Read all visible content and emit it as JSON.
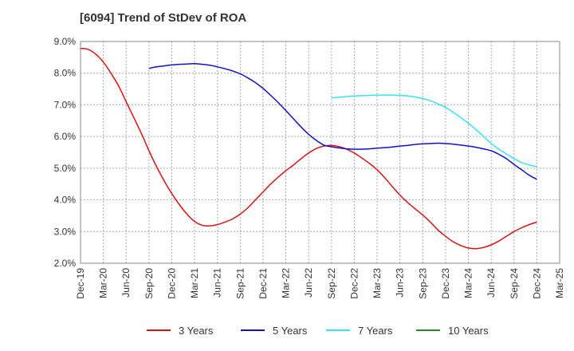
{
  "chart_data": {
    "type": "line",
    "title": "[6094]  Trend of StDev of ROA",
    "xlabel": "",
    "ylabel": "",
    "ylim": [
      2.0,
      9.0
    ],
    "y_ticks": [
      "2.0%",
      "3.0%",
      "4.0%",
      "5.0%",
      "6.0%",
      "7.0%",
      "8.0%",
      "9.0%"
    ],
    "x_ticks": [
      "Dec-19",
      "Mar-20",
      "Jun-20",
      "Sep-20",
      "Dec-20",
      "Mar-21",
      "Jun-21",
      "Sep-21",
      "Dec-21",
      "Mar-22",
      "Jun-22",
      "Sep-22",
      "Dec-22",
      "Mar-23",
      "Jun-23",
      "Sep-23",
      "Dec-23",
      "Mar-24",
      "Jun-24",
      "Sep-24",
      "Dec-24",
      "Mar-25"
    ],
    "grid": true,
    "legend_position": "bottom",
    "series": [
      {
        "name": "3 Years",
        "color": "#dd1111",
        "points": [
          [
            "Dec-19",
            8.78
          ],
          [
            "Jan-20",
            8.75
          ],
          [
            "Feb-20",
            8.6
          ],
          [
            "Mar-20",
            8.35
          ],
          [
            "Apr-20",
            8.0
          ],
          [
            "May-20",
            7.6
          ],
          [
            "Jun-20",
            7.1
          ],
          [
            "Jul-20",
            6.6
          ],
          [
            "Aug-20",
            6.1
          ],
          [
            "Sep-20",
            5.55
          ],
          [
            "Oct-20",
            5.05
          ],
          [
            "Nov-20",
            4.6
          ],
          [
            "Dec-20",
            4.2
          ],
          [
            "Jan-21",
            3.85
          ],
          [
            "Feb-21",
            3.55
          ],
          [
            "Mar-21",
            3.32
          ],
          [
            "Apr-21",
            3.2
          ],
          [
            "May-21",
            3.18
          ],
          [
            "Jun-21",
            3.22
          ],
          [
            "Jul-21",
            3.3
          ],
          [
            "Aug-21",
            3.4
          ],
          [
            "Sep-21",
            3.55
          ],
          [
            "Oct-21",
            3.75
          ],
          [
            "Nov-21",
            4.0
          ],
          [
            "Dec-21",
            4.25
          ],
          [
            "Jan-22",
            4.5
          ],
          [
            "Feb-22",
            4.72
          ],
          [
            "Mar-22",
            4.92
          ],
          [
            "Apr-22",
            5.1
          ],
          [
            "May-22",
            5.3
          ],
          [
            "Jun-22",
            5.48
          ],
          [
            "Jul-22",
            5.62
          ],
          [
            "Aug-22",
            5.7
          ],
          [
            "Sep-22",
            5.72
          ],
          [
            "Oct-22",
            5.68
          ],
          [
            "Nov-22",
            5.6
          ],
          [
            "Dec-22",
            5.48
          ],
          [
            "Jan-23",
            5.32
          ],
          [
            "Feb-23",
            5.15
          ],
          [
            "Mar-23",
            4.95
          ],
          [
            "Apr-23",
            4.7
          ],
          [
            "May-23",
            4.42
          ],
          [
            "Jun-23",
            4.15
          ],
          [
            "Jul-23",
            3.92
          ],
          [
            "Aug-23",
            3.72
          ],
          [
            "Sep-23",
            3.52
          ],
          [
            "Oct-23",
            3.3
          ],
          [
            "Nov-23",
            3.05
          ],
          [
            "Dec-23",
            2.85
          ],
          [
            "Jan-24",
            2.68
          ],
          [
            "Feb-24",
            2.56
          ],
          [
            "Mar-24",
            2.48
          ],
          [
            "Apr-24",
            2.46
          ],
          [
            "May-24",
            2.5
          ],
          [
            "Jun-24",
            2.58
          ],
          [
            "Jul-24",
            2.7
          ],
          [
            "Aug-24",
            2.85
          ],
          [
            "Sep-24",
            3.0
          ],
          [
            "Oct-24",
            3.12
          ],
          [
            "Nov-24",
            3.22
          ],
          [
            "Dec-24",
            3.3
          ]
        ]
      },
      {
        "name": "5 Years",
        "color": "#1111cc",
        "points": [
          [
            "Sep-20",
            8.15
          ],
          [
            "Oct-20",
            8.2
          ],
          [
            "Nov-20",
            8.23
          ],
          [
            "Dec-20",
            8.26
          ],
          [
            "Jan-21",
            8.28
          ],
          [
            "Feb-21",
            8.29
          ],
          [
            "Mar-21",
            8.3
          ],
          [
            "Apr-21",
            8.28
          ],
          [
            "May-21",
            8.25
          ],
          [
            "Jun-21",
            8.2
          ],
          [
            "Jul-21",
            8.14
          ],
          [
            "Aug-21",
            8.07
          ],
          [
            "Sep-21",
            7.98
          ],
          [
            "Oct-21",
            7.85
          ],
          [
            "Nov-21",
            7.7
          ],
          [
            "Dec-21",
            7.52
          ],
          [
            "Jan-22",
            7.3
          ],
          [
            "Feb-22",
            7.07
          ],
          [
            "Mar-22",
            6.82
          ],
          [
            "Apr-22",
            6.56
          ],
          [
            "May-22",
            6.3
          ],
          [
            "Jun-22",
            6.07
          ],
          [
            "Jul-22",
            5.88
          ],
          [
            "Aug-22",
            5.73
          ],
          [
            "Sep-22",
            5.68
          ],
          [
            "Oct-22",
            5.64
          ],
          [
            "Nov-22",
            5.61
          ],
          [
            "Dec-22",
            5.6
          ],
          [
            "Jan-23",
            5.6
          ],
          [
            "Feb-23",
            5.61
          ],
          [
            "Mar-23",
            5.63
          ],
          [
            "Apr-23",
            5.65
          ],
          [
            "May-23",
            5.67
          ],
          [
            "Jun-23",
            5.7
          ],
          [
            "Jul-23",
            5.72
          ],
          [
            "Aug-23",
            5.75
          ],
          [
            "Sep-23",
            5.77
          ],
          [
            "Oct-23",
            5.78
          ],
          [
            "Nov-23",
            5.79
          ],
          [
            "Dec-23",
            5.78
          ],
          [
            "Jan-24",
            5.76
          ],
          [
            "Feb-24",
            5.73
          ],
          [
            "Mar-24",
            5.7
          ],
          [
            "Apr-24",
            5.66
          ],
          [
            "May-24",
            5.61
          ],
          [
            "Jun-24",
            5.55
          ],
          [
            "Jul-24",
            5.44
          ],
          [
            "Aug-24",
            5.3
          ],
          [
            "Sep-24",
            5.12
          ],
          [
            "Oct-24",
            4.95
          ],
          [
            "Nov-24",
            4.78
          ],
          [
            "Dec-24",
            4.65
          ]
        ]
      },
      {
        "name": "7 Years",
        "color": "#33e5f0",
        "points": [
          [
            "Sep-22",
            7.22
          ],
          [
            "Oct-22",
            7.24
          ],
          [
            "Nov-22",
            7.26
          ],
          [
            "Dec-22",
            7.28
          ],
          [
            "Jan-23",
            7.29
          ],
          [
            "Feb-23",
            7.3
          ],
          [
            "Mar-23",
            7.31
          ],
          [
            "Apr-23",
            7.31
          ],
          [
            "May-23",
            7.31
          ],
          [
            "Jun-23",
            7.3
          ],
          [
            "Jul-23",
            7.28
          ],
          [
            "Aug-23",
            7.25
          ],
          [
            "Sep-23",
            7.2
          ],
          [
            "Oct-23",
            7.13
          ],
          [
            "Nov-23",
            7.03
          ],
          [
            "Dec-23",
            6.92
          ],
          [
            "Jan-24",
            6.77
          ],
          [
            "Feb-24",
            6.6
          ],
          [
            "Mar-24",
            6.42
          ],
          [
            "Apr-24",
            6.22
          ],
          [
            "May-24",
            6.0
          ],
          [
            "Jun-24",
            5.78
          ],
          [
            "Jul-24",
            5.6
          ],
          [
            "Aug-24",
            5.45
          ],
          [
            "Sep-24",
            5.3
          ],
          [
            "Oct-24",
            5.18
          ],
          [
            "Nov-24",
            5.1
          ],
          [
            "Dec-24",
            5.05
          ]
        ]
      },
      {
        "name": "10 Years",
        "color": "#228b22",
        "points": []
      }
    ]
  }
}
